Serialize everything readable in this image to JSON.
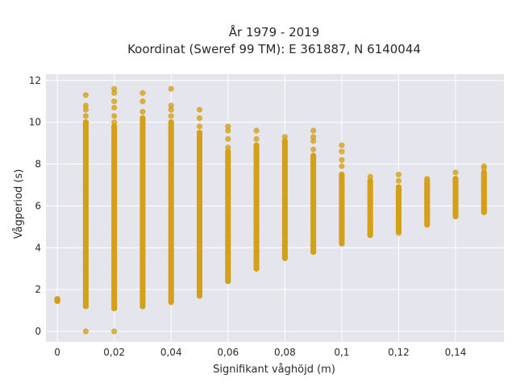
{
  "chart_data": {
    "type": "scatter",
    "title_line1": "År 1979 - 2019",
    "title_line2": "Koordinat (Sweref 99 TM): E 361887, N 6140044",
    "xlabel": "Signifikant våghöjd (m)",
    "ylabel": "Vågperiod (s)",
    "xlim": [
      -0.004,
      0.157
    ],
    "ylim": [
      -0.5,
      12.3
    ],
    "x_ticks": [
      0,
      0.02,
      0.04,
      0.06,
      0.08,
      0.1,
      0.12,
      0.14
    ],
    "x_tick_labels": [
      "0",
      "0,02",
      "0,04",
      "0,06",
      "0,08",
      "0,1",
      "0,12",
      "0,14"
    ],
    "y_ticks": [
      0,
      2,
      4,
      6,
      8,
      10,
      12
    ],
    "y_tick_labels": [
      "0",
      "2",
      "4",
      "6",
      "8",
      "10",
      "12"
    ],
    "grid": true,
    "colors": {
      "marker": "#D4A017",
      "plot_bg": "#E5E5EE",
      "grid": "#ffffff"
    },
    "columns": [
      {
        "x": 0.0,
        "ymin": 1.45,
        "ymax": 1.55,
        "outliers": [
          1.5
        ]
      },
      {
        "x": 0.01,
        "ymin": 1.2,
        "ymax": 10.0,
        "outliers": [
          0,
          10.3,
          10.6,
          10.8,
          11.3
        ]
      },
      {
        "x": 0.02,
        "ymin": 1.1,
        "ymax": 9.8,
        "outliers": [
          0,
          10.0,
          10.3,
          10.7,
          11.0,
          11.4,
          11.6
        ]
      },
      {
        "x": 0.03,
        "ymin": 1.2,
        "ymax": 10.2,
        "outliers": [
          10.5,
          11.0,
          11.4
        ]
      },
      {
        "x": 0.04,
        "ymin": 1.4,
        "ymax": 10.0,
        "outliers": [
          10.3,
          10.6,
          10.8,
          11.6
        ]
      },
      {
        "x": 0.05,
        "ymin": 1.7,
        "ymax": 9.5,
        "outliers": [
          9.8,
          10.2,
          10.6
        ]
      },
      {
        "x": 0.06,
        "ymin": 2.4,
        "ymax": 8.6,
        "outliers": [
          8.8,
          9.2,
          9.6,
          9.8
        ]
      },
      {
        "x": 0.07,
        "ymin": 3.0,
        "ymax": 8.9,
        "outliers": [
          9.2,
          9.6
        ]
      },
      {
        "x": 0.08,
        "ymin": 3.5,
        "ymax": 9.1,
        "outliers": [
          9.3
        ]
      },
      {
        "x": 0.09,
        "ymin": 3.8,
        "ymax": 8.4,
        "outliers": [
          8.7,
          9.1,
          9.3,
          9.6
        ]
      },
      {
        "x": 0.1,
        "ymin": 4.2,
        "ymax": 7.5,
        "outliers": [
          7.9,
          8.2,
          8.6,
          8.9
        ]
      },
      {
        "x": 0.11,
        "ymin": 4.6,
        "ymax": 7.2,
        "outliers": [
          7.4
        ]
      },
      {
        "x": 0.12,
        "ymin": 4.8,
        "ymax": 6.9,
        "outliers": [
          4.7,
          7.2,
          7.5
        ]
      },
      {
        "x": 0.13,
        "ymin": 5.1,
        "ymax": 7.2,
        "outliers": [
          7.3
        ]
      },
      {
        "x": 0.14,
        "ymin": 5.5,
        "ymax": 7.3,
        "outliers": [
          7.6
        ]
      },
      {
        "x": 0.15,
        "ymin": 5.7,
        "ymax": 7.6,
        "outliers": [
          7.8,
          7.9
        ]
      }
    ]
  }
}
